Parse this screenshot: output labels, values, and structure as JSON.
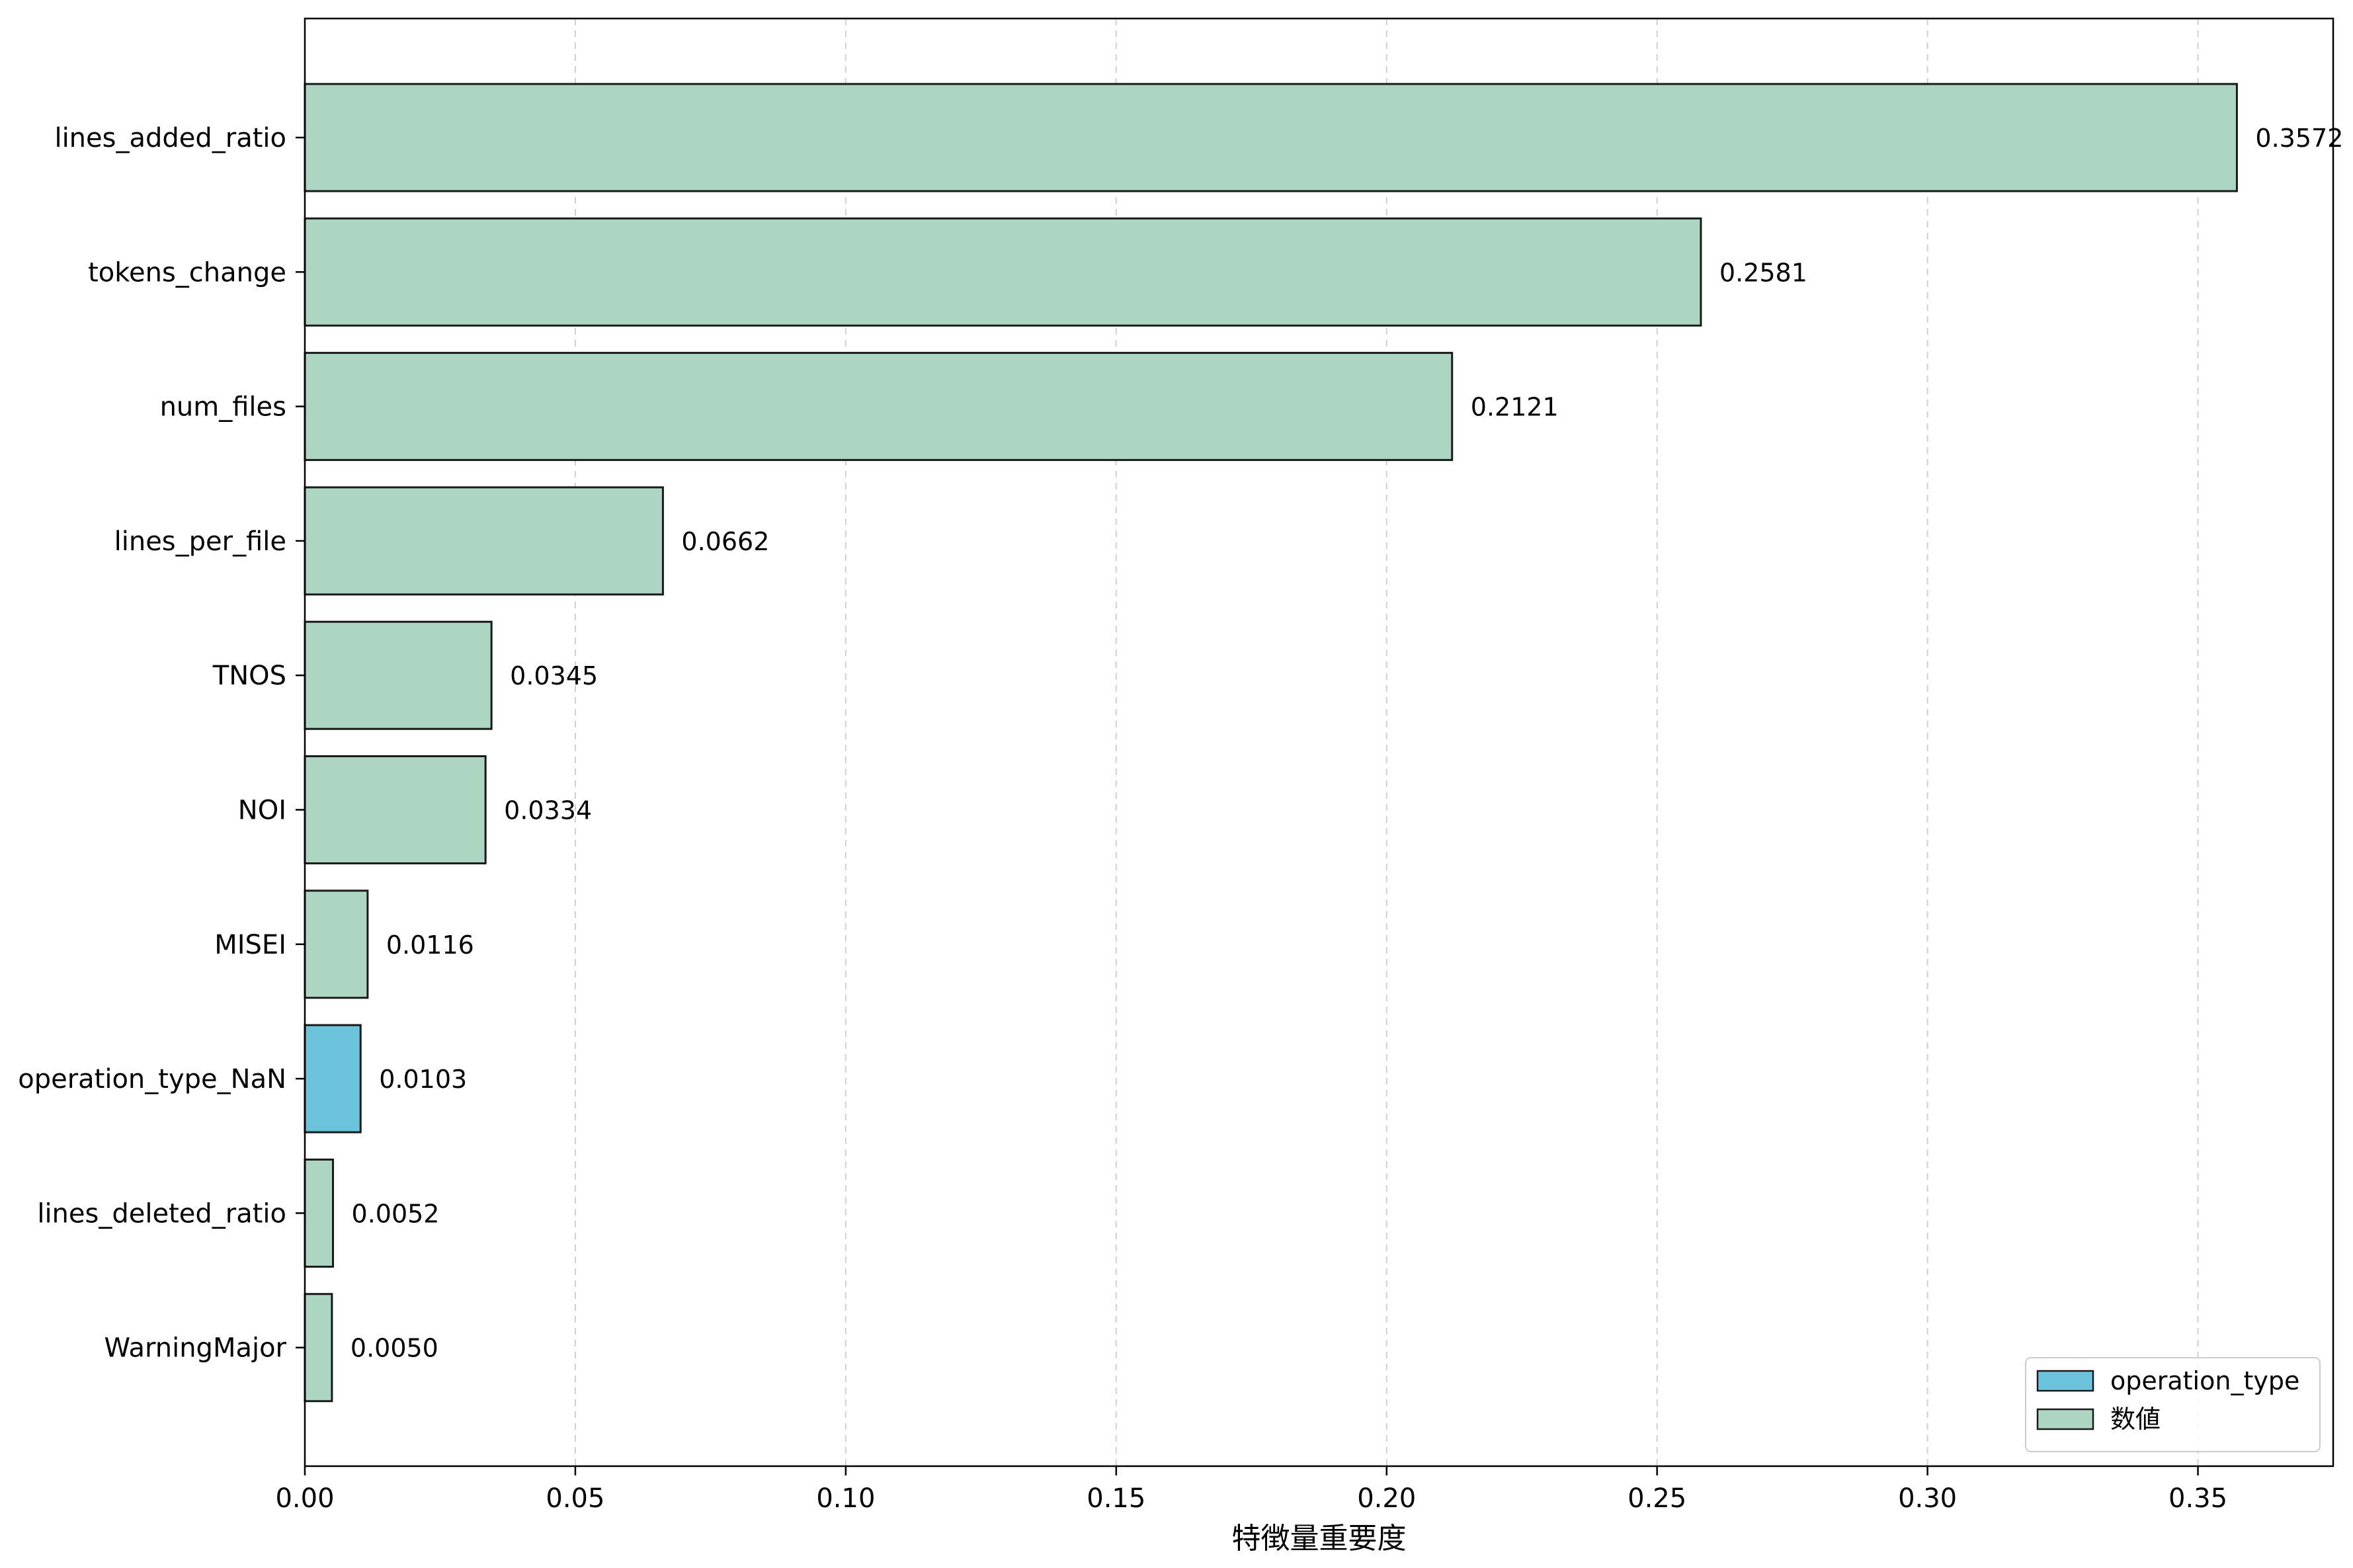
{
  "chart_data": {
    "type": "bar",
    "orientation": "horizontal",
    "title": "",
    "xlabel": "特徴量重要度",
    "ylabel": "",
    "xlim": [
      0,
      0.375
    ],
    "xticks": [
      0.0,
      0.05,
      0.1,
      0.15,
      0.2,
      0.25,
      0.3,
      0.35
    ],
    "xtick_labels": [
      "0.00",
      "0.05",
      "0.10",
      "0.15",
      "0.20",
      "0.25",
      "0.30",
      "0.35"
    ],
    "grid": "x-dashed",
    "legend_position": "bottom-right",
    "categories": [
      "lines_added_ratio",
      "tokens_change",
      "num_files",
      "lines_per_file",
      "TNOS",
      "NOI",
      "MISEI",
      "operation_type_NaN",
      "lines_deleted_ratio",
      "WarningMajor"
    ],
    "values": [
      0.3572,
      0.2581,
      0.2121,
      0.0662,
      0.0345,
      0.0334,
      0.0116,
      0.0103,
      0.0052,
      0.005
    ],
    "value_labels": [
      "0.3572",
      "0.2581",
      "0.2121",
      "0.0662",
      "0.0345",
      "0.0334",
      "0.0116",
      "0.0103",
      "0.0052",
      "0.0050"
    ],
    "groups": [
      "数値",
      "数値",
      "数値",
      "数値",
      "数値",
      "数値",
      "数値",
      "operation_type",
      "数値",
      "数値"
    ],
    "legend": [
      {
        "name": "operation_type",
        "color": "#6cc4dc"
      },
      {
        "name": "数値",
        "color": "#acd6c2"
      }
    ]
  }
}
